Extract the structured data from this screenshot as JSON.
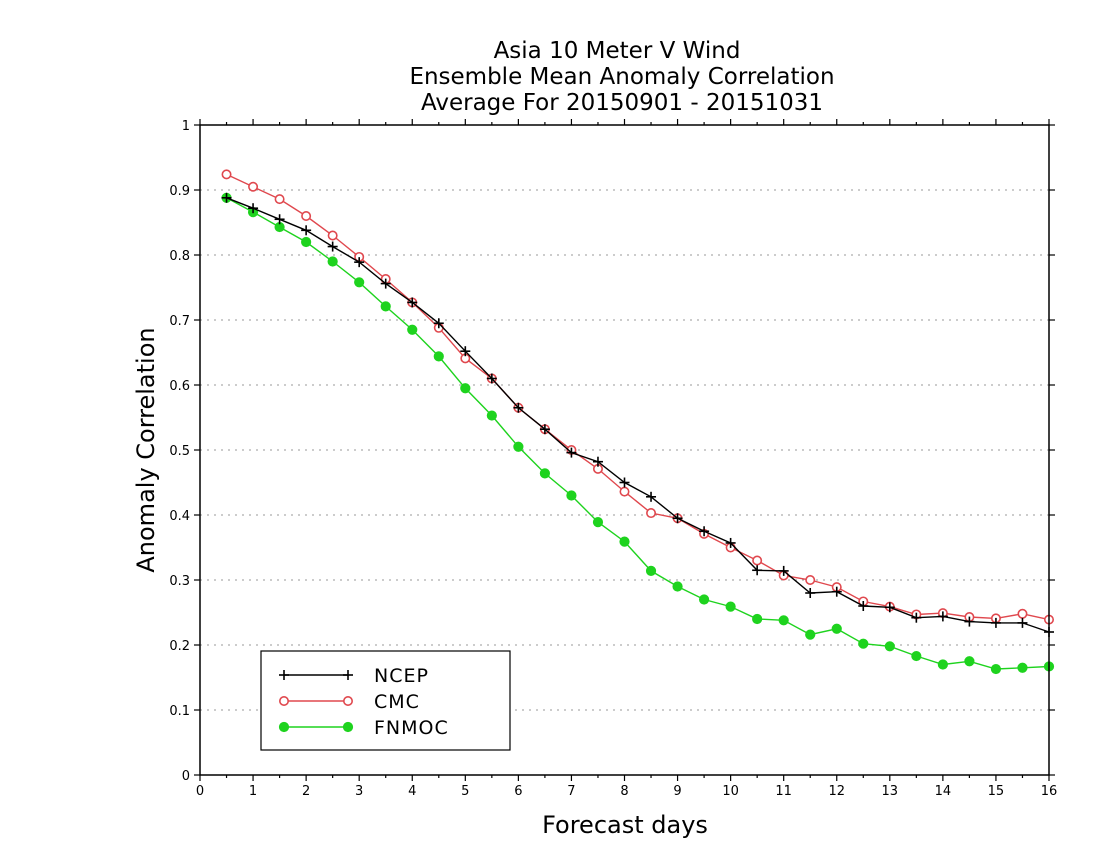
{
  "chart_data": {
    "type": "line",
    "title": [
      "Asia 10 Meter V Wind",
      "Ensemble Mean Anomaly Correlation",
      "Average For 20150901 - 20151031"
    ],
    "xlabel": "Forecast days",
    "ylabel": "Anomaly Correlation",
    "xlim": [
      0,
      16
    ],
    "ylim": [
      0,
      1
    ],
    "x_ticks": [
      "0",
      "1",
      "2",
      "3",
      "4",
      "5",
      "6",
      "7",
      "8",
      "9",
      "10",
      "11",
      "12",
      "13",
      "14",
      "15",
      "16"
    ],
    "y_ticks": [
      "0",
      "0.1",
      "0.2",
      "0.3",
      "0.4",
      "0.5",
      "0.6",
      "0.7",
      "0.8",
      "0.9",
      "1"
    ],
    "grid": "horizontal dotted",
    "legend_position": "bottom-left",
    "x": [
      0.5,
      1,
      1.5,
      2,
      2.5,
      3,
      3.5,
      4,
      4.5,
      5,
      5.5,
      6,
      6.5,
      7,
      7.5,
      8,
      8.5,
      9,
      9.5,
      10,
      10.5,
      11,
      11.5,
      12,
      12.5,
      13,
      13.5,
      14,
      14.5,
      15,
      15.5,
      16
    ],
    "series": [
      {
        "name": "NCEP",
        "color": "#000000",
        "marker": "plus",
        "values": [
          0.888,
          0.872,
          0.855,
          0.838,
          0.813,
          0.789,
          0.756,
          0.727,
          0.695,
          0.652,
          0.61,
          0.565,
          0.532,
          0.496,
          0.482,
          0.45,
          0.428,
          0.395,
          0.375,
          0.357,
          0.315,
          0.314,
          0.28,
          0.282,
          0.26,
          0.258,
          0.242,
          0.244,
          0.236,
          0.234,
          0.234,
          0.22
        ]
      },
      {
        "name": "CMC",
        "color": "#e0484e",
        "marker": "open-circle",
        "values": [
          0.924,
          0.905,
          0.886,
          0.86,
          0.83,
          0.797,
          0.763,
          0.727,
          0.688,
          0.641,
          0.61,
          0.565,
          0.532,
          0.5,
          0.471,
          0.436,
          0.403,
          0.395,
          0.371,
          0.35,
          0.33,
          0.307,
          0.3,
          0.289,
          0.267,
          0.259,
          0.247,
          0.249,
          0.243,
          0.241,
          0.248,
          0.239
        ]
      },
      {
        "name": "FNMOC",
        "color": "#1ed31e",
        "marker": "filled-circle",
        "values": [
          0.888,
          0.866,
          0.843,
          0.82,
          0.79,
          0.758,
          0.721,
          0.685,
          0.644,
          0.595,
          0.553,
          0.505,
          0.464,
          0.43,
          0.389,
          0.359,
          0.314,
          0.29,
          0.27,
          0.259,
          0.24,
          0.238,
          0.216,
          0.225,
          0.202,
          0.198,
          0.183,
          0.17,
          0.175,
          0.163,
          0.165,
          0.167
        ]
      }
    ]
  }
}
